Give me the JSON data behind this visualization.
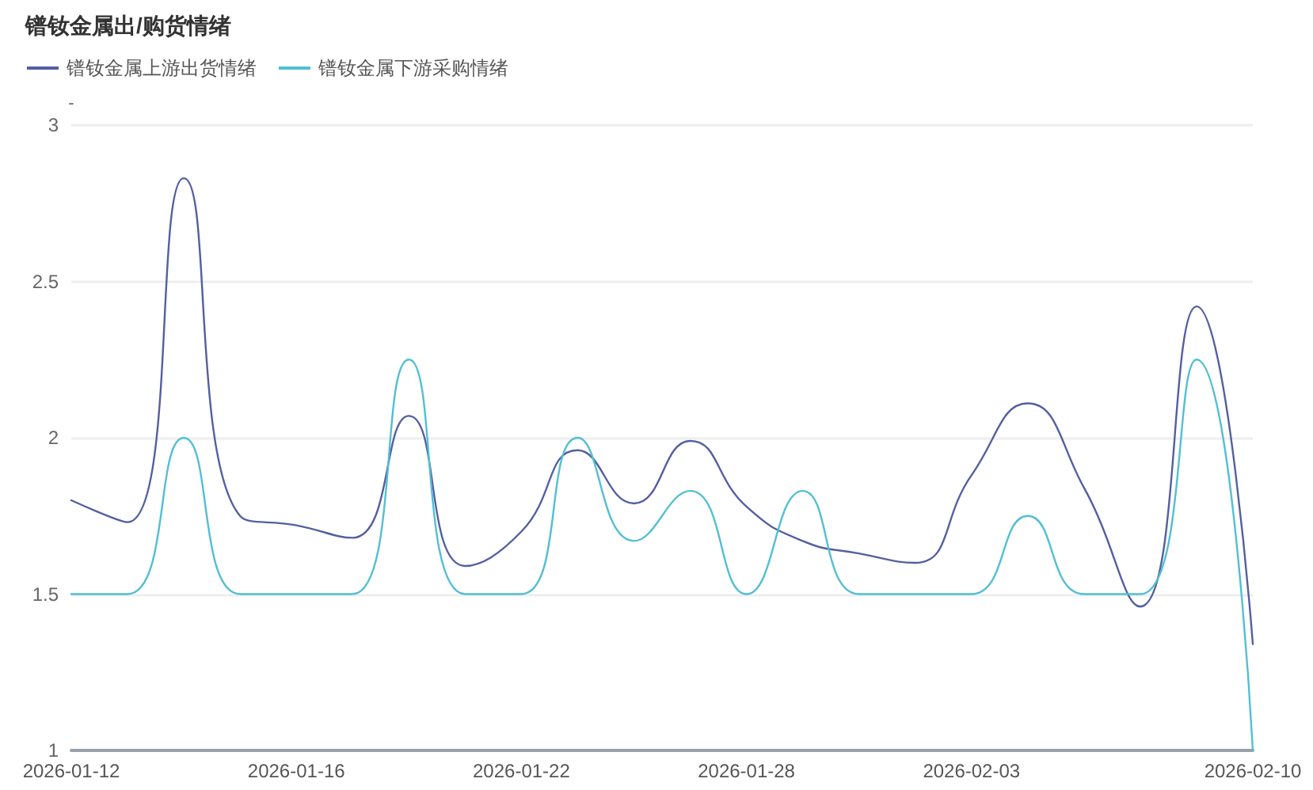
{
  "chart_data": {
    "type": "line",
    "title": "镨钕金属出/购货情绪",
    "ylabel": "-",
    "categories": [
      "2026-01-12",
      null,
      null,
      null,
      "2026-01-16",
      null,
      null,
      null,
      "2026-01-22",
      null,
      null,
      null,
      "2026-01-28",
      null,
      null,
      null,
      "2026-02-03",
      null,
      null,
      null,
      null,
      "2026-02-10"
    ],
    "series": [
      {
        "name": "镨钕金属上游出货情绪",
        "color": "#545fa0",
        "values": [
          1.8,
          1.73,
          2.83,
          1.75,
          1.72,
          1.68,
          2.07,
          1.59,
          1.7,
          1.96,
          1.79,
          1.99,
          1.78,
          1.67,
          1.63,
          1.6,
          1.88,
          2.11,
          1.84,
          1.46,
          2.42,
          1.34
        ]
      },
      {
        "name": "镨钕金属下游采购情绪",
        "color": "#52bfd3",
        "values": [
          1.5,
          1.5,
          2.0,
          1.5,
          1.5,
          1.5,
          2.25,
          1.5,
          1.5,
          2.0,
          1.67,
          1.83,
          1.5,
          1.83,
          1.5,
          1.5,
          1.5,
          1.75,
          1.5,
          1.5,
          2.25,
          1.0
        ]
      }
    ],
    "ylim": [
      1,
      3
    ],
    "yticks": [
      1,
      1.5,
      2,
      2.5,
      3
    ],
    "grid": "y",
    "legend": "top left",
    "marker": "none",
    "line_style": "solid"
  }
}
